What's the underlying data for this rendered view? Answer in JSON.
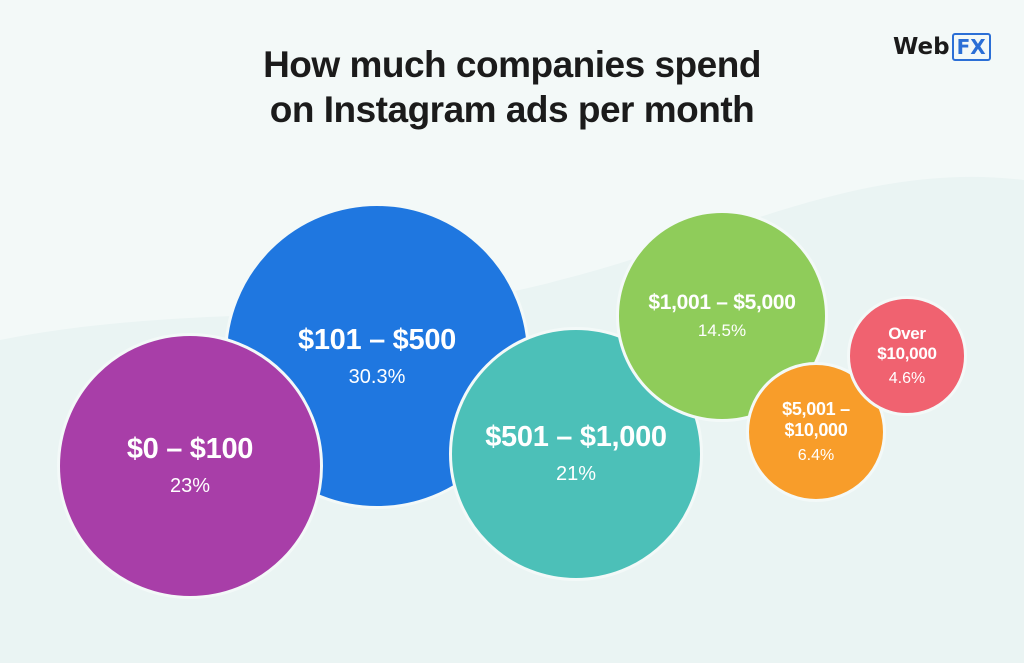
{
  "header": {
    "title_line1": "How much companies spend",
    "title_line2": "on Instagram ads per month"
  },
  "logo": {
    "web": "Web",
    "fx": "FX"
  },
  "colors": {
    "background": "#f3f9f8",
    "title": "#1b1b1b"
  },
  "chart_data": {
    "type": "bubble",
    "title": "How much companies spend on Instagram ads per month",
    "unit": "%",
    "categories": [
      "$0 – $100",
      "$101 – $500",
      "$501 – $1,000",
      "$1,001 – $5,000",
      "$5,001 – $10,000",
      "Over $10,000"
    ],
    "values": [
      23,
      30.3,
      21,
      14.5,
      6.4,
      4.6
    ],
    "value_labels": [
      "23%",
      "30.3%",
      "21%",
      "14.5%",
      "6.4%",
      "4.6%"
    ],
    "series_colors": [
      "#a83ea8",
      "#1f77e0",
      "#4cc0b8",
      "#8fcc5a",
      "#f89d2a",
      "#f06270"
    ],
    "legend": "none",
    "grid": false
  }
}
